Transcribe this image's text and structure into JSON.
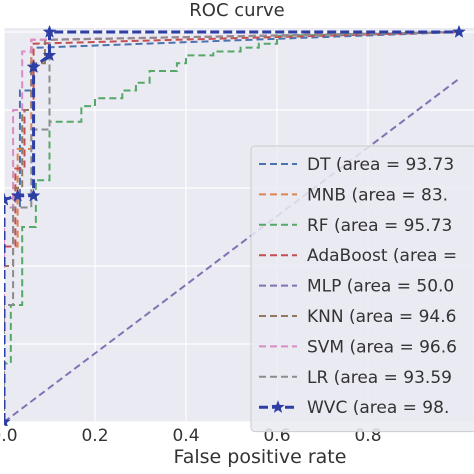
{
  "chart_data": {
    "type": "line",
    "title": "ROC curve",
    "xlabel": "False positive rate",
    "ylabel": "",
    "xlim": [
      0.0,
      1.0
    ],
    "ylim": [
      0.0,
      1.0
    ],
    "grid": true,
    "legend_placement": "lower-right",
    "x_ticks": [
      "0.0",
      "0.2",
      "0.4",
      "0.6",
      "0.8"
    ],
    "x_tick_values": [
      0.0,
      0.2,
      0.4,
      0.6,
      0.8
    ],
    "background_color": "#eaeaf2",
    "series": [
      {
        "label": "DT (area = 93.73",
        "color": "#4c72b0",
        "marker": "",
        "x": [
          0.0,
          0.0,
          0.035,
          0.035,
          0.06,
          0.06,
          0.08,
          1.0
        ],
        "y": [
          0.0,
          0.55,
          0.55,
          0.85,
          0.85,
          0.96,
          0.96,
          1.0
        ]
      },
      {
        "label": "MNB (area = 83.",
        "color": "#dd8452",
        "marker": "",
        "x": [
          0.0,
          0.0,
          0.03,
          0.03,
          0.06,
          0.06,
          0.1,
          1.0
        ],
        "y": [
          0.0,
          0.45,
          0.45,
          0.7,
          0.7,
          0.98,
          0.98,
          1.0
        ]
      },
      {
        "label": "RF (area = 95.73",
        "color": "#55a868",
        "marker": "",
        "x": [
          0.0,
          0.0,
          0.015,
          0.015,
          0.04,
          0.04,
          0.07,
          0.07,
          0.1,
          0.1,
          0.17,
          0.17,
          0.2,
          0.2,
          0.26,
          0.26,
          0.29,
          0.29,
          0.32,
          0.32,
          0.38,
          0.38,
          0.4,
          0.4,
          0.46,
          0.46,
          0.52,
          0.52,
          0.56,
          0.56,
          0.6,
          0.6,
          1.0
        ],
        "y": [
          0.0,
          0.15,
          0.15,
          0.3,
          0.3,
          0.5,
          0.5,
          0.62,
          0.62,
          0.77,
          0.77,
          0.81,
          0.81,
          0.83,
          0.83,
          0.85,
          0.85,
          0.87,
          0.87,
          0.9,
          0.9,
          0.92,
          0.92,
          0.94,
          0.94,
          0.95,
          0.95,
          0.96,
          0.96,
          0.97,
          0.97,
          0.99,
          1.0
        ]
      },
      {
        "label": "AdaBoost (area =",
        "color": "#c44e52",
        "marker": "",
        "x": [
          0.0,
          0.0,
          0.025,
          0.025,
          0.045,
          0.045,
          0.065,
          0.065,
          1.0
        ],
        "y": [
          0.0,
          0.45,
          0.45,
          0.65,
          0.65,
          0.8,
          0.8,
          0.97,
          1.0
        ]
      },
      {
        "label": "MLP (area = 50.0",
        "color": "#8172b3",
        "marker": "",
        "x": [
          0.0,
          1.0
        ],
        "y": [
          0.0,
          0.88
        ]
      },
      {
        "label": "KNN (area = 94.6",
        "color": "#937860",
        "marker": "",
        "x": [
          0.0,
          0.0,
          0.02,
          0.02,
          0.04,
          0.04,
          0.06,
          0.06,
          0.09,
          0.09,
          1.0
        ],
        "y": [
          0.0,
          0.4,
          0.4,
          0.6,
          0.6,
          0.8,
          0.8,
          0.92,
          0.92,
          0.98,
          1.0
        ]
      },
      {
        "label": "SVM (area = 96.6",
        "color": "#da8bc3",
        "marker": "",
        "x": [
          0.0,
          0.0,
          0.02,
          0.02,
          0.04,
          0.04,
          0.06,
          0.06,
          1.0
        ],
        "y": [
          0.0,
          0.55,
          0.55,
          0.8,
          0.8,
          0.95,
          0.95,
          0.98,
          1.0
        ]
      },
      {
        "label": "LR (area = 93.59",
        "color": "#8c8c8c",
        "marker": "",
        "x": [
          0.0,
          0.0,
          0.02,
          0.02,
          0.06,
          0.06,
          0.1,
          0.1,
          1.0
        ],
        "y": [
          0.0,
          0.3,
          0.3,
          0.55,
          0.55,
          0.75,
          0.75,
          0.98,
          1.0
        ]
      },
      {
        "label": "WVC (area = 98.",
        "color": "#2d3fa5",
        "marker": "star",
        "x": [
          0.0,
          0.0,
          0.0,
          0.03,
          0.065,
          0.065,
          0.065,
          0.1,
          0.1,
          1.0
        ],
        "y": [
          0.0,
          0.57,
          0.57,
          0.58,
          0.58,
          0.91,
          0.91,
          0.94,
          1.0,
          1.0
        ]
      }
    ]
  }
}
